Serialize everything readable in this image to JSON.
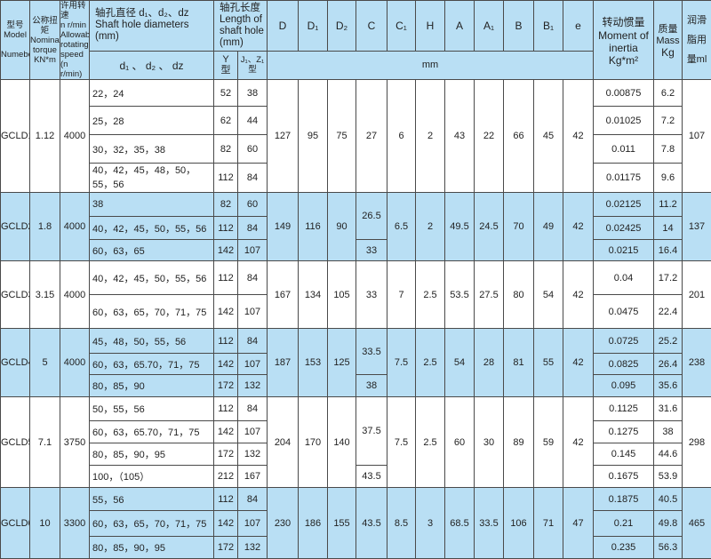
{
  "header": {
    "model": [
      "型号",
      "Model",
      "Numeber"
    ],
    "torque": [
      "公称扭矩",
      "Nominal",
      "torque",
      "KN*m"
    ],
    "speed": [
      "许用转速",
      "n r/min",
      "Allowable",
      "rotating",
      "speed",
      "(n r/min)"
    ],
    "shaft_diam": [
      "轴孔直径 d₁、d₂、dz",
      "Shaft hole diameters",
      "(mm)"
    ],
    "shaft_diam_sub": "d₁ 、 d₂ 、 dz",
    "shaft_len": [
      "轴孔长度",
      "Length of",
      "shaft hole",
      "(mm)"
    ],
    "y_type": [
      "Y",
      "型"
    ],
    "jz_type": "J₁、Z₁型",
    "dims": [
      "D",
      "D₁",
      "D₂",
      "C",
      "C₁",
      "H",
      "A",
      "A₁",
      "B",
      "B₁",
      "e"
    ],
    "mm": "mm",
    "inertia": [
      "转动惯量",
      "Moment of",
      "inertia",
      "Kg*m²"
    ],
    "mass": [
      "质量",
      "Mass",
      "Kg"
    ],
    "lube": [
      "润滑",
      "脂用",
      "量ml"
    ]
  },
  "models": [
    {
      "model": "GCLD1",
      "torque": "1.12",
      "speed": "4000",
      "D": "127",
      "D1": "95",
      "D2": "75",
      "C": [
        {
          "v": "27",
          "span": 4
        }
      ],
      "C1": "6",
      "H": "2",
      "A": "43",
      "A1": "22",
      "B": "66",
      "B1": "45",
      "e": "42",
      "lube": "107",
      "blue": false,
      "rows": [
        {
          "d": "22，24",
          "Y": "52",
          "J": "38",
          "inertia": "0.00875",
          "mass": "6.2"
        },
        {
          "d": "25，28",
          "Y": "62",
          "J": "44",
          "inertia": "0.01025",
          "mass": "7.2"
        },
        {
          "d": "30，32，35，38",
          "Y": "82",
          "J": "60",
          "inertia": "0.011",
          "mass": "7.8"
        },
        {
          "d": "40，42，45，48，50，\n55，56",
          "Y": "112",
          "J": "84",
          "inertia": "0.01175",
          "mass": "9.6"
        }
      ]
    },
    {
      "model": "GCLD2",
      "torque": "1.8",
      "speed": "4000",
      "D": "149",
      "D1": "116",
      "D2": "90",
      "C": [
        {
          "v": "26.5",
          "span": 2
        },
        {
          "v": "33",
          "span": 1
        }
      ],
      "C1": "6.5",
      "H": "2",
      "A": "49.5",
      "A1": "24.5",
      "B": "70",
      "B1": "49",
      "e": "42",
      "lube": "137",
      "blue": true,
      "rows": [
        {
          "d": "38",
          "Y": "82",
          "J": "60",
          "inertia": "0.02125",
          "mass": "11.2"
        },
        {
          "d": "40，42，45，50，55，56",
          "Y": "112",
          "J": "84",
          "inertia": "0.02425",
          "mass": "14"
        },
        {
          "d": "60，63，65",
          "Y": "142",
          "J": "107",
          "inertia": "0.0215",
          "mass": "16.4"
        }
      ]
    },
    {
      "model": "GCLD3",
      "torque": "3.15",
      "speed": "4000",
      "D": "167",
      "D1": "134",
      "D2": "105",
      "C": [
        {
          "v": "33",
          "span": 2
        }
      ],
      "C1": "7",
      "H": "2.5",
      "A": "53.5",
      "A1": "27.5",
      "B": "80",
      "B1": "54",
      "e": "42",
      "lube": "201",
      "blue": false,
      "rows": [
        {
          "d": "40，42，45，50，55，56",
          "Y": "112",
          "J": "84",
          "inertia": "0.04",
          "mass": "17.2"
        },
        {
          "d": "60，63，65，70，71，75",
          "Y": "142",
          "J": "107",
          "inertia": "0.0475",
          "mass": "22.4"
        }
      ]
    },
    {
      "model": "GCLD4",
      "torque": "5",
      "speed": "4000",
      "D": "187",
      "D1": "153",
      "D2": "125",
      "C": [
        {
          "v": "33.5",
          "span": 2
        },
        {
          "v": "38",
          "span": 1
        }
      ],
      "C1": "7.5",
      "H": "2.5",
      "A": "54",
      "A1": "28",
      "B": "81",
      "B1": "55",
      "e": "42",
      "lube": "238",
      "blue": true,
      "rows": [
        {
          "d": "45，48，50，55，56",
          "Y": "112",
          "J": "84",
          "inertia": "0.0725",
          "mass": "25.2"
        },
        {
          "d": "60，63，65.70，71，75",
          "Y": "142",
          "J": "107",
          "inertia": "0.0825",
          "mass": "26.4"
        },
        {
          "d": "80，85，90",
          "Y": "172",
          "J": "132",
          "inertia": "0.095",
          "mass": "35.6"
        }
      ]
    },
    {
      "model": "GCLD5",
      "torque": "7.1",
      "speed": "3750",
      "D": "204",
      "D1": "170",
      "D2": "140",
      "C": [
        {
          "v": "37.5",
          "span": 3
        },
        {
          "v": "43.5",
          "span": 1
        }
      ],
      "C1": "7.5",
      "H": "2.5",
      "A": "60",
      "A1": "30",
      "B": "89",
      "B1": "59",
      "e": "42",
      "lube": "298",
      "blue": false,
      "rows": [
        {
          "d": "50，55，56",
          "Y": "112",
          "J": "84",
          "inertia": "0.1125",
          "mass": "31.6"
        },
        {
          "d": "60，63，65.70，71，75",
          "Y": "142",
          "J": "107",
          "inertia": "0.1275",
          "mass": "38"
        },
        {
          "d": "80，85，90，95",
          "Y": "172",
          "J": "132",
          "inertia": "0.145",
          "mass": "44.6"
        },
        {
          "d": "100，（105）",
          "Y": "212",
          "J": "167",
          "inertia": "0.1675",
          "mass": "53.9"
        }
      ]
    },
    {
      "model": "GCLD6",
      "torque": "10",
      "speed": "3300",
      "D": "230",
      "D1": "186",
      "D2": "155",
      "C": [
        {
          "v": "43.5",
          "span": 3
        }
      ],
      "C1": "8.5",
      "H": "3",
      "A": "68.5",
      "A1": "33.5",
      "B": "106",
      "B1": "71",
      "e": "47",
      "lube": "465",
      "blue": true,
      "rows": [
        {
          "d": "55，56",
          "Y": "112",
          "J": "84",
          "inertia": "0.1875",
          "mass": "40.5"
        },
        {
          "d": "60，63，65，70，71，75",
          "Y": "142",
          "J": "107",
          "inertia": "0.21",
          "mass": "49.8"
        },
        {
          "d": "80，85，90，95",
          "Y": "172",
          "J": "132",
          "inertia": "0.235",
          "mass": "56.3"
        }
      ]
    }
  ]
}
